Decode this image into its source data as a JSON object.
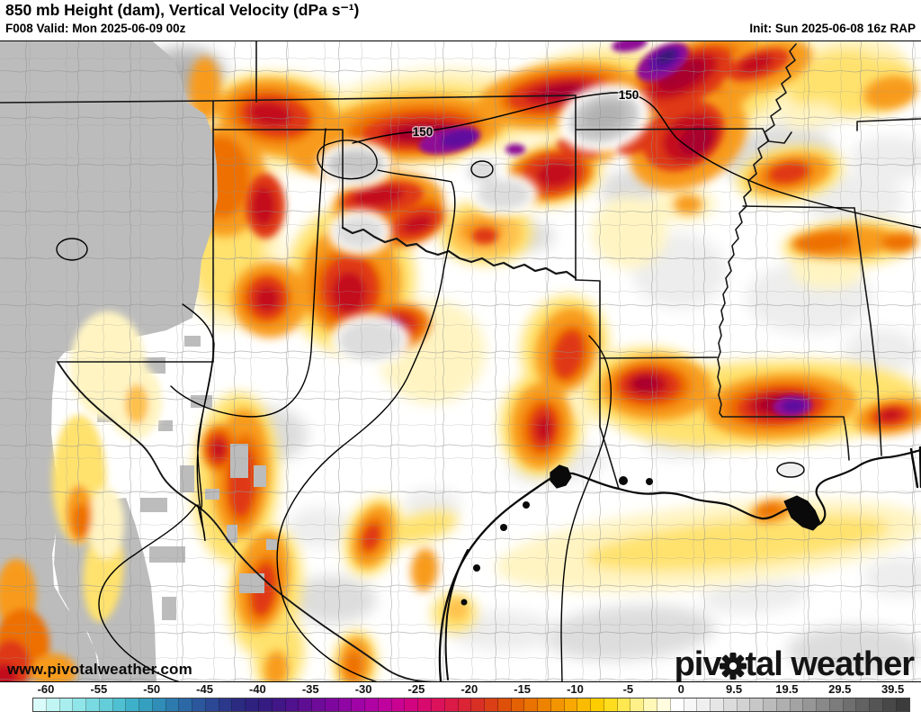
{
  "header": {
    "title": "850 mb Height (dam), Vertical Velocity (dPa s⁻¹)",
    "valid": "F008 Valid: Mon 2025-06-09 00z",
    "init": "Init: Sun 2025-06-08 16z RAP"
  },
  "map": {
    "contour_labels": [
      "150",
      "150"
    ],
    "watermark": "www.pivotalweather.com"
  },
  "logo": {
    "part1": "piv",
    "part2": "tal weather"
  },
  "colorbar": {
    "ticks": [
      "-60",
      "-55",
      "-50",
      "-45",
      "-40",
      "-35",
      "-30",
      "-25",
      "-20",
      "-15",
      "-10",
      "-5",
      "0",
      "9.5",
      "19.5",
      "29.5",
      "39.5"
    ],
    "segments": [
      "#d9fbfa",
      "#c0f5f3",
      "#a8eeee",
      "#90e5e8",
      "#79dae1",
      "#63cdd9",
      "#4fc0d2",
      "#3fb0c9",
      "#359fc0",
      "#2f8db8",
      "#2d7aaf",
      "#2c68a6",
      "#2c579d",
      "#2c4794",
      "#2c388b",
      "#2c2b82",
      "#2e2180",
      "#351b82",
      "#411687",
      "#4f118d",
      "#5e0e93",
      "#6e0b99",
      "#7e089f",
      "#8f06a4",
      "#a004a6",
      "#b003a4",
      "#bf029d",
      "#ca0291",
      "#d20480",
      "#d80a6d",
      "#db115a",
      "#dc1a47",
      "#db2435",
      "#d93025",
      "#da3f16",
      "#de4f0a",
      "#e36003",
      "#e97200",
      "#ee8300",
      "#f39500",
      "#f8a800",
      "#fbbb00",
      "#fecd00",
      "#ffdd1e",
      "#ffe850",
      "#fff189",
      "#fff8b8",
      "#fffce0",
      "#ffffff",
      "#f7f7f7",
      "#efefef",
      "#e6e6e6",
      "#dcdcdc",
      "#d2d2d2",
      "#c7c7c7",
      "#bbbbbb",
      "#afafaf",
      "#a3a3a3",
      "#969696",
      "#898989",
      "#7c7c7c",
      "#6f6f6f",
      "#626262",
      "#555555",
      "#484848",
      "#3c3c3c"
    ]
  },
  "colors": {
    "mask_gray": "#bcbcbc",
    "g1": "#ededed",
    "g2": "#dddddd",
    "g3": "#c8c8c8",
    "g4": "#b2b2b2",
    "y1": "#fff4c2",
    "y2": "#ffe26e",
    "o3": "#ffc14d",
    "o4": "#f89b1d",
    "o5": "#ee7005",
    "r6": "#df3812",
    "r7": "#c40f1f",
    "r8": "#a9052e",
    "p1": "#8f0a96",
    "p2": "#5f0d9e",
    "p3": "#3a1678",
    "w": "#ffffff"
  }
}
